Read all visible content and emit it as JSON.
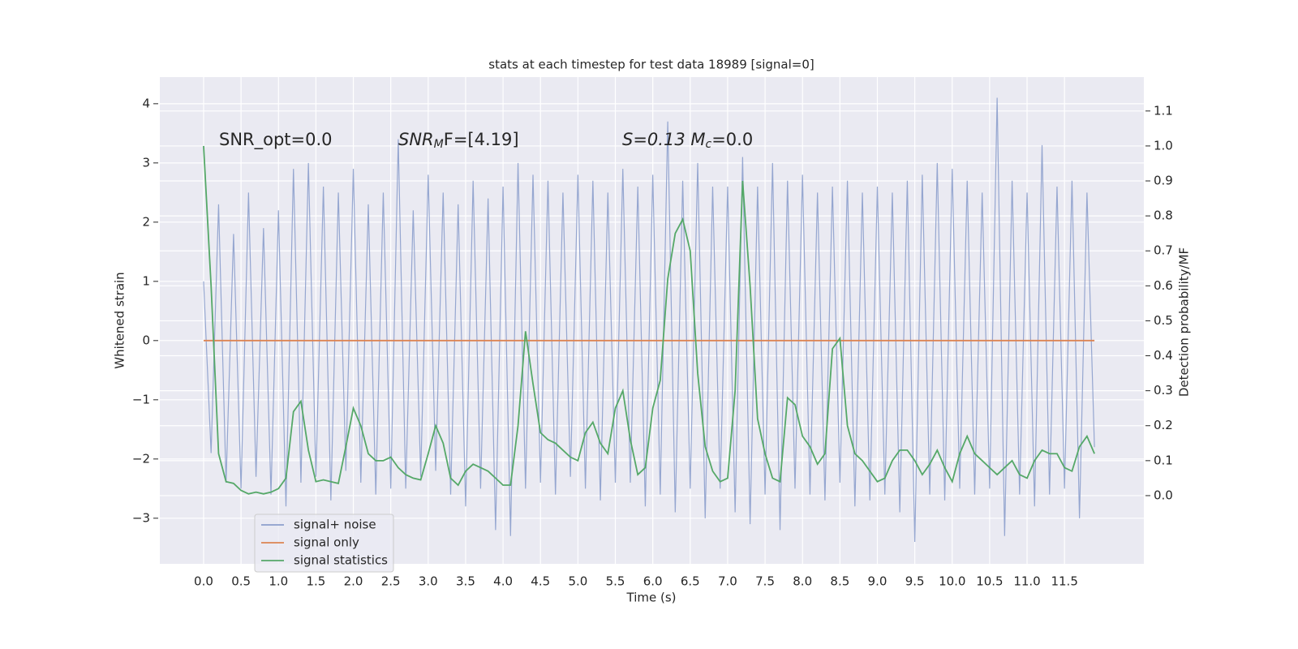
{
  "chart_data": {
    "type": "line",
    "title": "stats at each timestep for test data 18989 [signal=0]",
    "xlabel": "Time (s)",
    "ylabel": "Whitened strain",
    "y2label": "Detection probability/MF",
    "annotations": [
      [
        "SNR_opt=0.0"
      ],
      [
        "SNR",
        "M",
        "F=[4.19]"
      ],
      [
        "S=0.13   M",
        "c",
        "=0.0"
      ]
    ],
    "xlim": [
      -0.585,
      12.56
    ],
    "ylim": [
      -3.77,
      4.45
    ],
    "y2lim": [
      -0.195,
      1.197
    ],
    "xticks": [
      {
        "value": 0,
        "label": "0.0"
      },
      0.5,
      {
        "value": 1,
        "label": "1.0"
      },
      1.5,
      {
        "value": 2,
        "label": "2.0"
      },
      2.5,
      {
        "value": 3,
        "label": "3.0"
      },
      3.5,
      {
        "value": 4,
        "label": "4.0"
      },
      4.5,
      {
        "value": 5,
        "label": "5.0"
      },
      5.5,
      {
        "value": 6,
        "label": "6.0"
      },
      6.5,
      {
        "value": 7,
        "label": "7.0"
      },
      7.5,
      {
        "value": 8,
        "label": "8.0"
      },
      8.5,
      {
        "value": 9,
        "label": "9.0"
      },
      9.5,
      {
        "value": 10,
        "label": "10.0"
      },
      10.5,
      {
        "value": 11,
        "label": "11.0"
      },
      11.5
    ],
    "yticks": [
      {
        "value": -3,
        "label": "−3"
      },
      {
        "value": -2,
        "label": "−2"
      },
      {
        "value": -1,
        "label": "−1"
      },
      0,
      1,
      2,
      3,
      4
    ],
    "y2ticks": [
      {
        "value": 0,
        "label": "0.0"
      },
      0.1,
      0.2,
      0.3,
      0.4,
      0.5,
      0.6,
      0.7,
      0.8,
      0.9,
      {
        "value": 1,
        "label": "1.0"
      },
      1.1
    ],
    "grid": true,
    "legend": "lower left",
    "x": [
      0,
      0.1,
      0.2,
      0.3,
      0.4,
      0.5,
      0.6,
      0.7,
      0.8,
      0.9,
      1,
      1.1,
      1.2,
      1.3,
      1.4,
      1.5,
      1.6,
      1.7,
      1.8,
      1.9,
      2,
      2.1,
      2.2,
      2.3,
      2.4,
      2.5,
      2.6,
      2.7,
      2.8,
      2.9,
      3,
      3.1,
      3.2,
      3.3,
      3.4,
      3.5,
      3.6,
      3.7,
      3.8,
      3.9,
      4,
      4.1,
      4.2,
      4.3,
      4.4,
      4.5,
      4.6,
      4.7,
      4.8,
      4.9,
      5,
      5.1,
      5.2,
      5.3,
      5.4,
      5.5,
      5.6,
      5.7,
      5.8,
      5.9,
      6,
      6.1,
      6.2,
      6.3,
      6.4,
      6.5,
      6.6,
      6.7,
      6.8,
      6.9,
      7,
      7.1,
      7.2,
      7.3,
      7.4,
      7.5,
      7.6,
      7.7,
      7.8,
      7.9,
      8,
      8.1,
      8.2,
      8.3,
      8.4,
      8.5,
      8.6,
      8.7,
      8.8,
      8.9,
      9,
      9.1,
      9.2,
      9.3,
      9.4,
      9.5,
      9.6,
      9.7,
      9.8,
      9.9,
      10,
      10.1,
      10.2,
      10.3,
      10.4,
      10.5,
      10.6,
      10.7,
      10.8,
      10.9,
      11,
      11.1,
      11.2,
      11.3,
      11.4,
      11.5,
      11.6,
      11.7,
      11.8,
      11.9
    ],
    "series": [
      {
        "name": "signal+ noise",
        "color": "#8c9fcc",
        "values": [
          1.0,
          -1.9,
          2.3,
          -2.4,
          1.8,
          -2.5,
          2.5,
          -2.3,
          1.9,
          -2.6,
          2.2,
          -2.8,
          2.9,
          -2.4,
          3.0,
          -2.3,
          2.6,
          -2.7,
          2.5,
          -2.2,
          2.9,
          -2.4,
          2.3,
          -2.6,
          2.5,
          -2.5,
          3.4,
          -2.5,
          2.2,
          -2.3,
          2.8,
          -2.2,
          2.5,
          -2.6,
          2.3,
          -2.8,
          2.7,
          -2.5,
          2.4,
          -3.2,
          2.6,
          -3.3,
          3.0,
          -2.5,
          2.8,
          -2.4,
          2.7,
          -2.6,
          2.5,
          -2.3,
          2.8,
          -2.5,
          2.7,
          -2.7,
          2.5,
          -2.4,
          2.9,
          -2.4,
          2.6,
          -2.8,
          2.8,
          -2.6,
          3.7,
          -2.9,
          2.7,
          -2.5,
          3.0,
          -3.0,
          2.6,
          -2.5,
          2.6,
          -2.9,
          3.1,
          -3.1,
          2.6,
          -2.6,
          3.0,
          -3.2,
          2.7,
          -2.5,
          2.8,
          -2.6,
          2.5,
          -2.7,
          2.6,
          -2.4,
          2.7,
          -2.8,
          2.5,
          -2.7,
          2.6,
          -2.6,
          2.5,
          -2.9,
          2.7,
          -3.4,
          2.8,
          -2.6,
          3.0,
          -2.7,
          2.9,
          -2.5,
          2.7,
          -2.6,
          2.5,
          -2.5,
          4.1,
          -3.3,
          2.7,
          -2.6,
          2.5,
          -2.8,
          3.3,
          -2.6,
          2.6,
          -2.5,
          2.7,
          -3.0,
          2.5,
          -1.8
        ]
      },
      {
        "name": "signal only",
        "color": "#dd8452",
        "values": [
          0,
          0,
          0,
          0,
          0,
          0,
          0,
          0,
          0,
          0,
          0,
          0,
          0,
          0,
          0,
          0,
          0,
          0,
          0,
          0,
          0,
          0,
          0,
          0,
          0,
          0,
          0,
          0,
          0,
          0,
          0,
          0,
          0,
          0,
          0,
          0,
          0,
          0,
          0,
          0,
          0,
          0,
          0,
          0,
          0,
          0,
          0,
          0,
          0,
          0,
          0,
          0,
          0,
          0,
          0,
          0,
          0,
          0,
          0,
          0,
          0,
          0,
          0,
          0,
          0,
          0,
          0,
          0,
          0,
          0,
          0,
          0,
          0,
          0,
          0,
          0,
          0,
          0,
          0,
          0,
          0,
          0,
          0,
          0,
          0,
          0,
          0,
          0,
          0,
          0,
          0,
          0,
          0,
          0,
          0,
          0,
          0,
          0,
          0,
          0,
          0,
          0,
          0,
          0,
          0,
          0,
          0,
          0,
          0,
          0,
          0,
          0,
          0,
          0,
          0,
          0,
          0,
          0,
          0,
          0
        ]
      },
      {
        "name": "signal statistics",
        "color": "#55a868",
        "axis": "y2",
        "values": [
          1.0,
          0.6,
          0.12,
          0.04,
          0.035,
          0.015,
          0.005,
          0.01,
          0.005,
          0.01,
          0.02,
          0.05,
          0.24,
          0.27,
          0.13,
          0.04,
          0.045,
          0.04,
          0.035,
          0.14,
          0.25,
          0.2,
          0.12,
          0.1,
          0.1,
          0.11,
          0.08,
          0.06,
          0.05,
          0.045,
          0.12,
          0.2,
          0.15,
          0.05,
          0.03,
          0.07,
          0.09,
          0.08,
          0.07,
          0.05,
          0.03,
          0.03,
          0.2,
          0.47,
          0.32,
          0.18,
          0.16,
          0.15,
          0.13,
          0.11,
          0.1,
          0.18,
          0.21,
          0.15,
          0.12,
          0.25,
          0.3,
          0.16,
          0.06,
          0.08,
          0.25,
          0.33,
          0.62,
          0.75,
          0.79,
          0.7,
          0.35,
          0.14,
          0.07,
          0.04,
          0.05,
          0.3,
          0.9,
          0.6,
          0.22,
          0.12,
          0.05,
          0.04,
          0.28,
          0.26,
          0.17,
          0.14,
          0.09,
          0.12,
          0.42,
          0.45,
          0.2,
          0.12,
          0.1,
          0.07,
          0.04,
          0.05,
          0.1,
          0.13,
          0.13,
          0.1,
          0.06,
          0.09,
          0.13,
          0.08,
          0.04,
          0.12,
          0.17,
          0.12,
          0.1,
          0.08,
          0.06,
          0.08,
          0.1,
          0.06,
          0.05,
          0.1,
          0.13,
          0.12,
          0.12,
          0.08,
          0.07,
          0.14,
          0.17,
          0.12
        ]
      }
    ]
  }
}
